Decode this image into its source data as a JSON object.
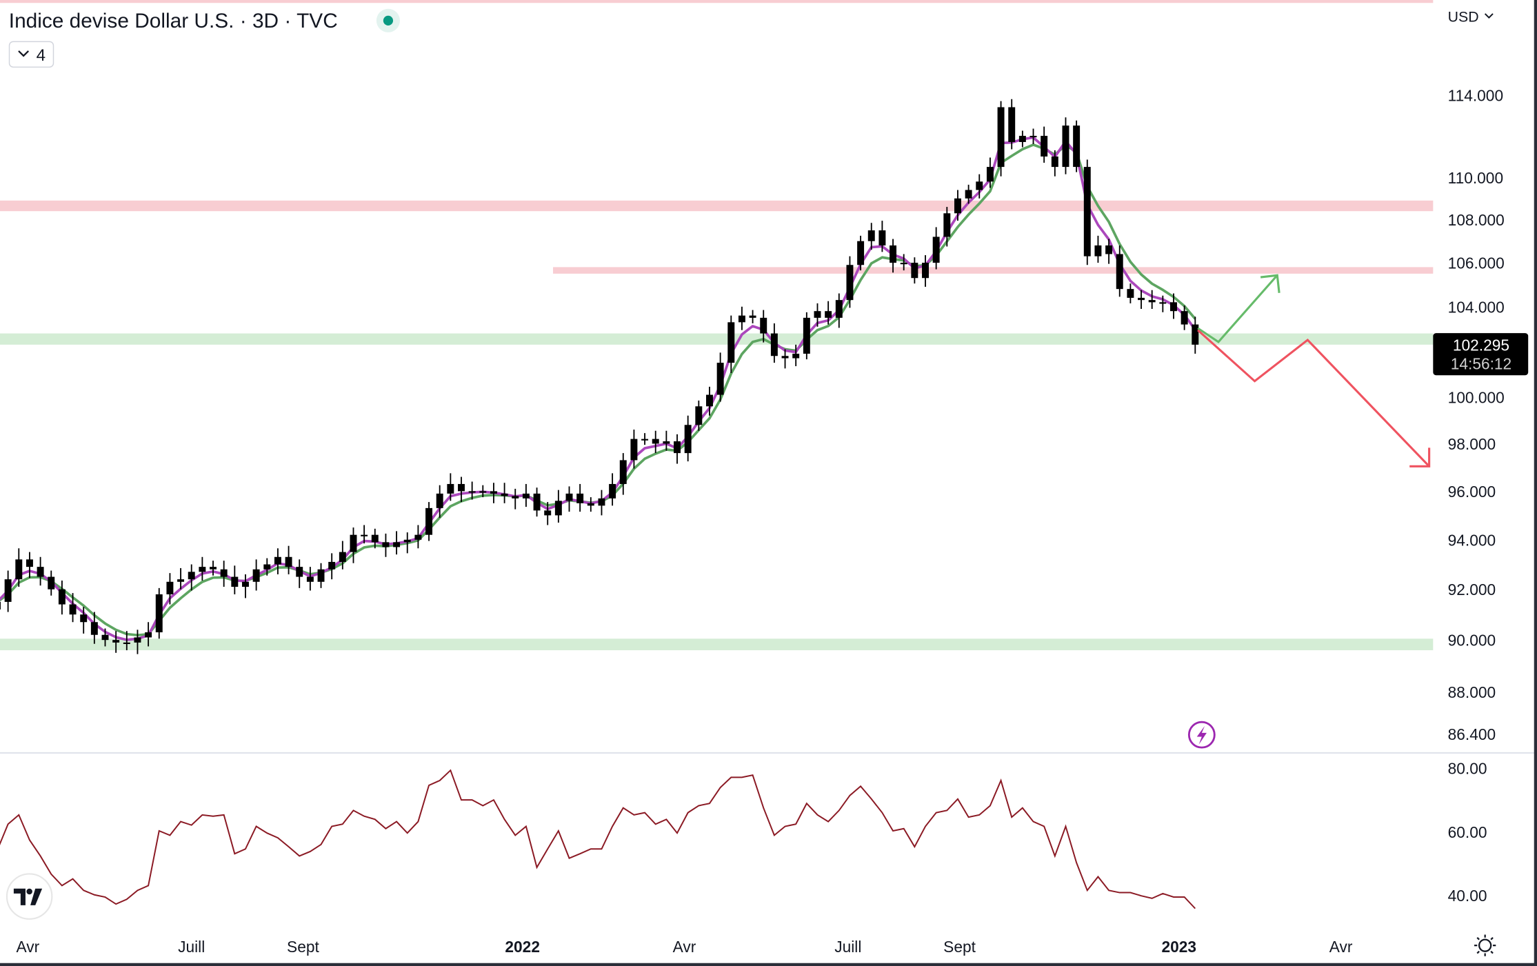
{
  "header": {
    "title": "Indice devise Dollar U.S. · 3D · TVC",
    "status_dot_color": "#089981",
    "indicators_toggle_label": "4",
    "currency_label": "USD"
  },
  "price_label": {
    "value": "102.295",
    "countdown": "14:56:12"
  },
  "colors": {
    "candle": "#000000",
    "ema_fast": "#ab47bc",
    "ema_slow": "#5da561",
    "rsi": "#8b1a24",
    "resistance_zone": "#f8cdd2",
    "support_zone": "#d4edd5",
    "projection_up": "#66bb6a",
    "projection_down": "#ef5360"
  },
  "icons": {
    "logo": "tradingview-logo",
    "alert": "lightning-icon",
    "settings": "gear-icon"
  },
  "chart_data": [
    {
      "type": "candlestick",
      "interval": "3D",
      "y_scale": "log",
      "y_ticks": [
        "114.000",
        "110.000",
        "108.000",
        "106.000",
        "104.000",
        "100.000",
        "98.000",
        "96.000",
        "94.000",
        "92.000",
        "90.000",
        "88.000",
        "86.400"
      ],
      "y_tick_values": [
        114,
        110,
        108,
        106,
        104,
        100,
        98,
        96,
        94,
        92,
        90,
        88,
        86.4
      ],
      "ylim": [
        86.4,
        118.7
      ],
      "x_ticks": [
        {
          "label": "Avr",
          "date": "2021-04-01",
          "bold": false
        },
        {
          "label": "Juill",
          "date": "2021-07-01",
          "bold": false
        },
        {
          "label": "Sept",
          "date": "2021-09-01",
          "bold": false
        },
        {
          "label": "2022",
          "date": "2022-01-01",
          "bold": true
        },
        {
          "label": "Avr",
          "date": "2022-04-01",
          "bold": false
        },
        {
          "label": "Juill",
          "date": "2022-07-01",
          "bold": false
        },
        {
          "label": "Sept",
          "date": "2022-09-01",
          "bold": false
        },
        {
          "label": "2023",
          "date": "2023-01-01",
          "bold": true
        },
        {
          "label": "Avr",
          "date": "2023-04-01",
          "bold": false
        }
      ],
      "dates": [
        "2021-03-15",
        "2021-03-21",
        "2021-03-27",
        "2021-04-02",
        "2021-04-08",
        "2021-04-14",
        "2021-04-20",
        "2021-04-26",
        "2021-05-02",
        "2021-05-08",
        "2021-05-14",
        "2021-05-20",
        "2021-05-26",
        "2021-06-01",
        "2021-06-07",
        "2021-06-13",
        "2021-06-19",
        "2021-06-25",
        "2021-07-01",
        "2021-07-07",
        "2021-07-13",
        "2021-07-19",
        "2021-07-25",
        "2021-07-31",
        "2021-08-06",
        "2021-08-12",
        "2021-08-18",
        "2021-08-24",
        "2021-08-30",
        "2021-09-05",
        "2021-09-11",
        "2021-09-17",
        "2021-09-23",
        "2021-09-29",
        "2021-10-05",
        "2021-10-11",
        "2021-10-17",
        "2021-10-23",
        "2021-10-29",
        "2021-11-04",
        "2021-11-10",
        "2021-11-16",
        "2021-11-22",
        "2021-11-28",
        "2021-12-04",
        "2021-12-10",
        "2021-12-16",
        "2021-12-22",
        "2021-12-28",
        "2022-01-03",
        "2022-01-09",
        "2022-01-15",
        "2022-01-21",
        "2022-01-27",
        "2022-02-02",
        "2022-02-08",
        "2022-02-14",
        "2022-02-20",
        "2022-02-26",
        "2022-03-04",
        "2022-03-10",
        "2022-03-16",
        "2022-03-22",
        "2022-03-28",
        "2022-04-03",
        "2022-04-09",
        "2022-04-15",
        "2022-04-21",
        "2022-04-27",
        "2022-05-03",
        "2022-05-09",
        "2022-05-15",
        "2022-05-21",
        "2022-05-27",
        "2022-06-02",
        "2022-06-08",
        "2022-06-14",
        "2022-06-20",
        "2022-06-26",
        "2022-07-02",
        "2022-07-08",
        "2022-07-14",
        "2022-07-20",
        "2022-07-26",
        "2022-08-01",
        "2022-08-07",
        "2022-08-13",
        "2022-08-19",
        "2022-08-25",
        "2022-08-31",
        "2022-09-06",
        "2022-09-12",
        "2022-09-18",
        "2022-09-24",
        "2022-09-30",
        "2022-10-06",
        "2022-10-12",
        "2022-10-18",
        "2022-10-24",
        "2022-10-30",
        "2022-11-05",
        "2022-11-11",
        "2022-11-17",
        "2022-11-23",
        "2022-11-29",
        "2022-12-05",
        "2022-12-11",
        "2022-12-17",
        "2022-12-23",
        "2022-12-29",
        "2023-01-04",
        "2023-01-10"
      ],
      "close": [
        91.5,
        92.4,
        93.2,
        92.9,
        92.5,
        92.0,
        91.4,
        91.0,
        90.7,
        90.2,
        90.0,
        89.9,
        89.9,
        90.1,
        90.3,
        91.8,
        92.3,
        92.4,
        92.7,
        92.9,
        92.8,
        92.5,
        92.1,
        92.3,
        92.8,
        93.0,
        93.3,
        92.9,
        92.5,
        92.3,
        92.8,
        93.1,
        93.5,
        94.2,
        94.2,
        93.9,
        93.7,
        93.9,
        94.0,
        94.2,
        95.3,
        95.9,
        96.3,
        96.0,
        96.0,
        96.0,
        95.9,
        95.8,
        95.7,
        95.9,
        95.2,
        95.0,
        95.6,
        95.9,
        95.5,
        95.4,
        95.7,
        96.3,
        97.3,
        98.2,
        98.2,
        98.0,
        98.1,
        97.6,
        98.8,
        99.6,
        100.1,
        101.5,
        103.3,
        103.6,
        103.5,
        102.8,
        101.8,
        101.7,
        101.9,
        103.5,
        103.8,
        103.5,
        104.3,
        105.9,
        107.0,
        107.5,
        106.8,
        106.0,
        106.0,
        105.3,
        106.0,
        107.2,
        108.3,
        109.0,
        109.4,
        109.8,
        110.5,
        113.4,
        111.7,
        112.0,
        112.0,
        111.0,
        110.5,
        112.5,
        110.5,
        106.3,
        106.8,
        106.4,
        104.8,
        104.4,
        104.3,
        104.2,
        104.2,
        103.8,
        103.2,
        102.3
      ],
      "zones": [
        {
          "kind": "resistance",
          "from": 118.7,
          "to": 119.5,
          "start": "2021-03-14"
        },
        {
          "kind": "resistance",
          "from": 108.4,
          "to": 108.9,
          "start": "2021-03-14"
        },
        {
          "kind": "resistance",
          "from": 105.5,
          "to": 105.8,
          "start": "2022-01-18"
        },
        {
          "kind": "support",
          "from": 102.3,
          "to": 102.8,
          "start": "2021-03-14"
        },
        {
          "kind": "support",
          "from": 89.6,
          "to": 90.05,
          "start": "2021-03-14"
        }
      ]
    },
    {
      "type": "line",
      "y_ticks": [
        "80.00",
        "60.00",
        "40.00"
      ],
      "y_tick_values": [
        80,
        60,
        40
      ],
      "rsi": [
        54.2,
        62.4,
        65.3,
        57.4,
        52.4,
        46.7,
        43.1,
        45.2,
        41.6,
        40.2,
        39.5,
        37.3,
        38.8,
        41.6,
        43.1,
        60.3,
        58.9,
        63.2,
        62.1,
        65.3,
        64.9,
        65.3,
        53.1,
        54.6,
        61.7,
        59.6,
        58.1,
        55.3,
        52.4,
        53.8,
        56.0,
        61.7,
        62.4,
        66.7,
        64.9,
        63.9,
        61.0,
        63.2,
        59.6,
        63.2,
        74.6,
        76.1,
        79.3,
        70.0,
        70.0,
        68.2,
        70.0,
        63.9,
        58.9,
        61.7,
        48.8,
        54.6,
        60.3,
        51.7,
        53.1,
        54.6,
        54.6,
        61.7,
        67.5,
        65.3,
        66.0,
        62.4,
        63.9,
        59.6,
        66.0,
        68.2,
        68.9,
        73.9,
        77.1,
        77.1,
        77.8,
        67.5,
        58.9,
        61.7,
        62.4,
        68.9,
        65.3,
        63.2,
        66.7,
        71.4,
        74.3,
        70.3,
        66.0,
        60.3,
        61.0,
        55.3,
        61.7,
        66.0,
        66.7,
        70.3,
        64.6,
        65.3,
        68.2,
        76.1,
        64.6,
        67.5,
        63.2,
        61.7,
        52.4,
        61.7,
        50.3,
        41.6,
        45.9,
        41.6,
        40.9,
        40.9,
        39.9,
        39.1,
        40.6,
        39.5,
        39.5,
        35.9
      ]
    }
  ]
}
